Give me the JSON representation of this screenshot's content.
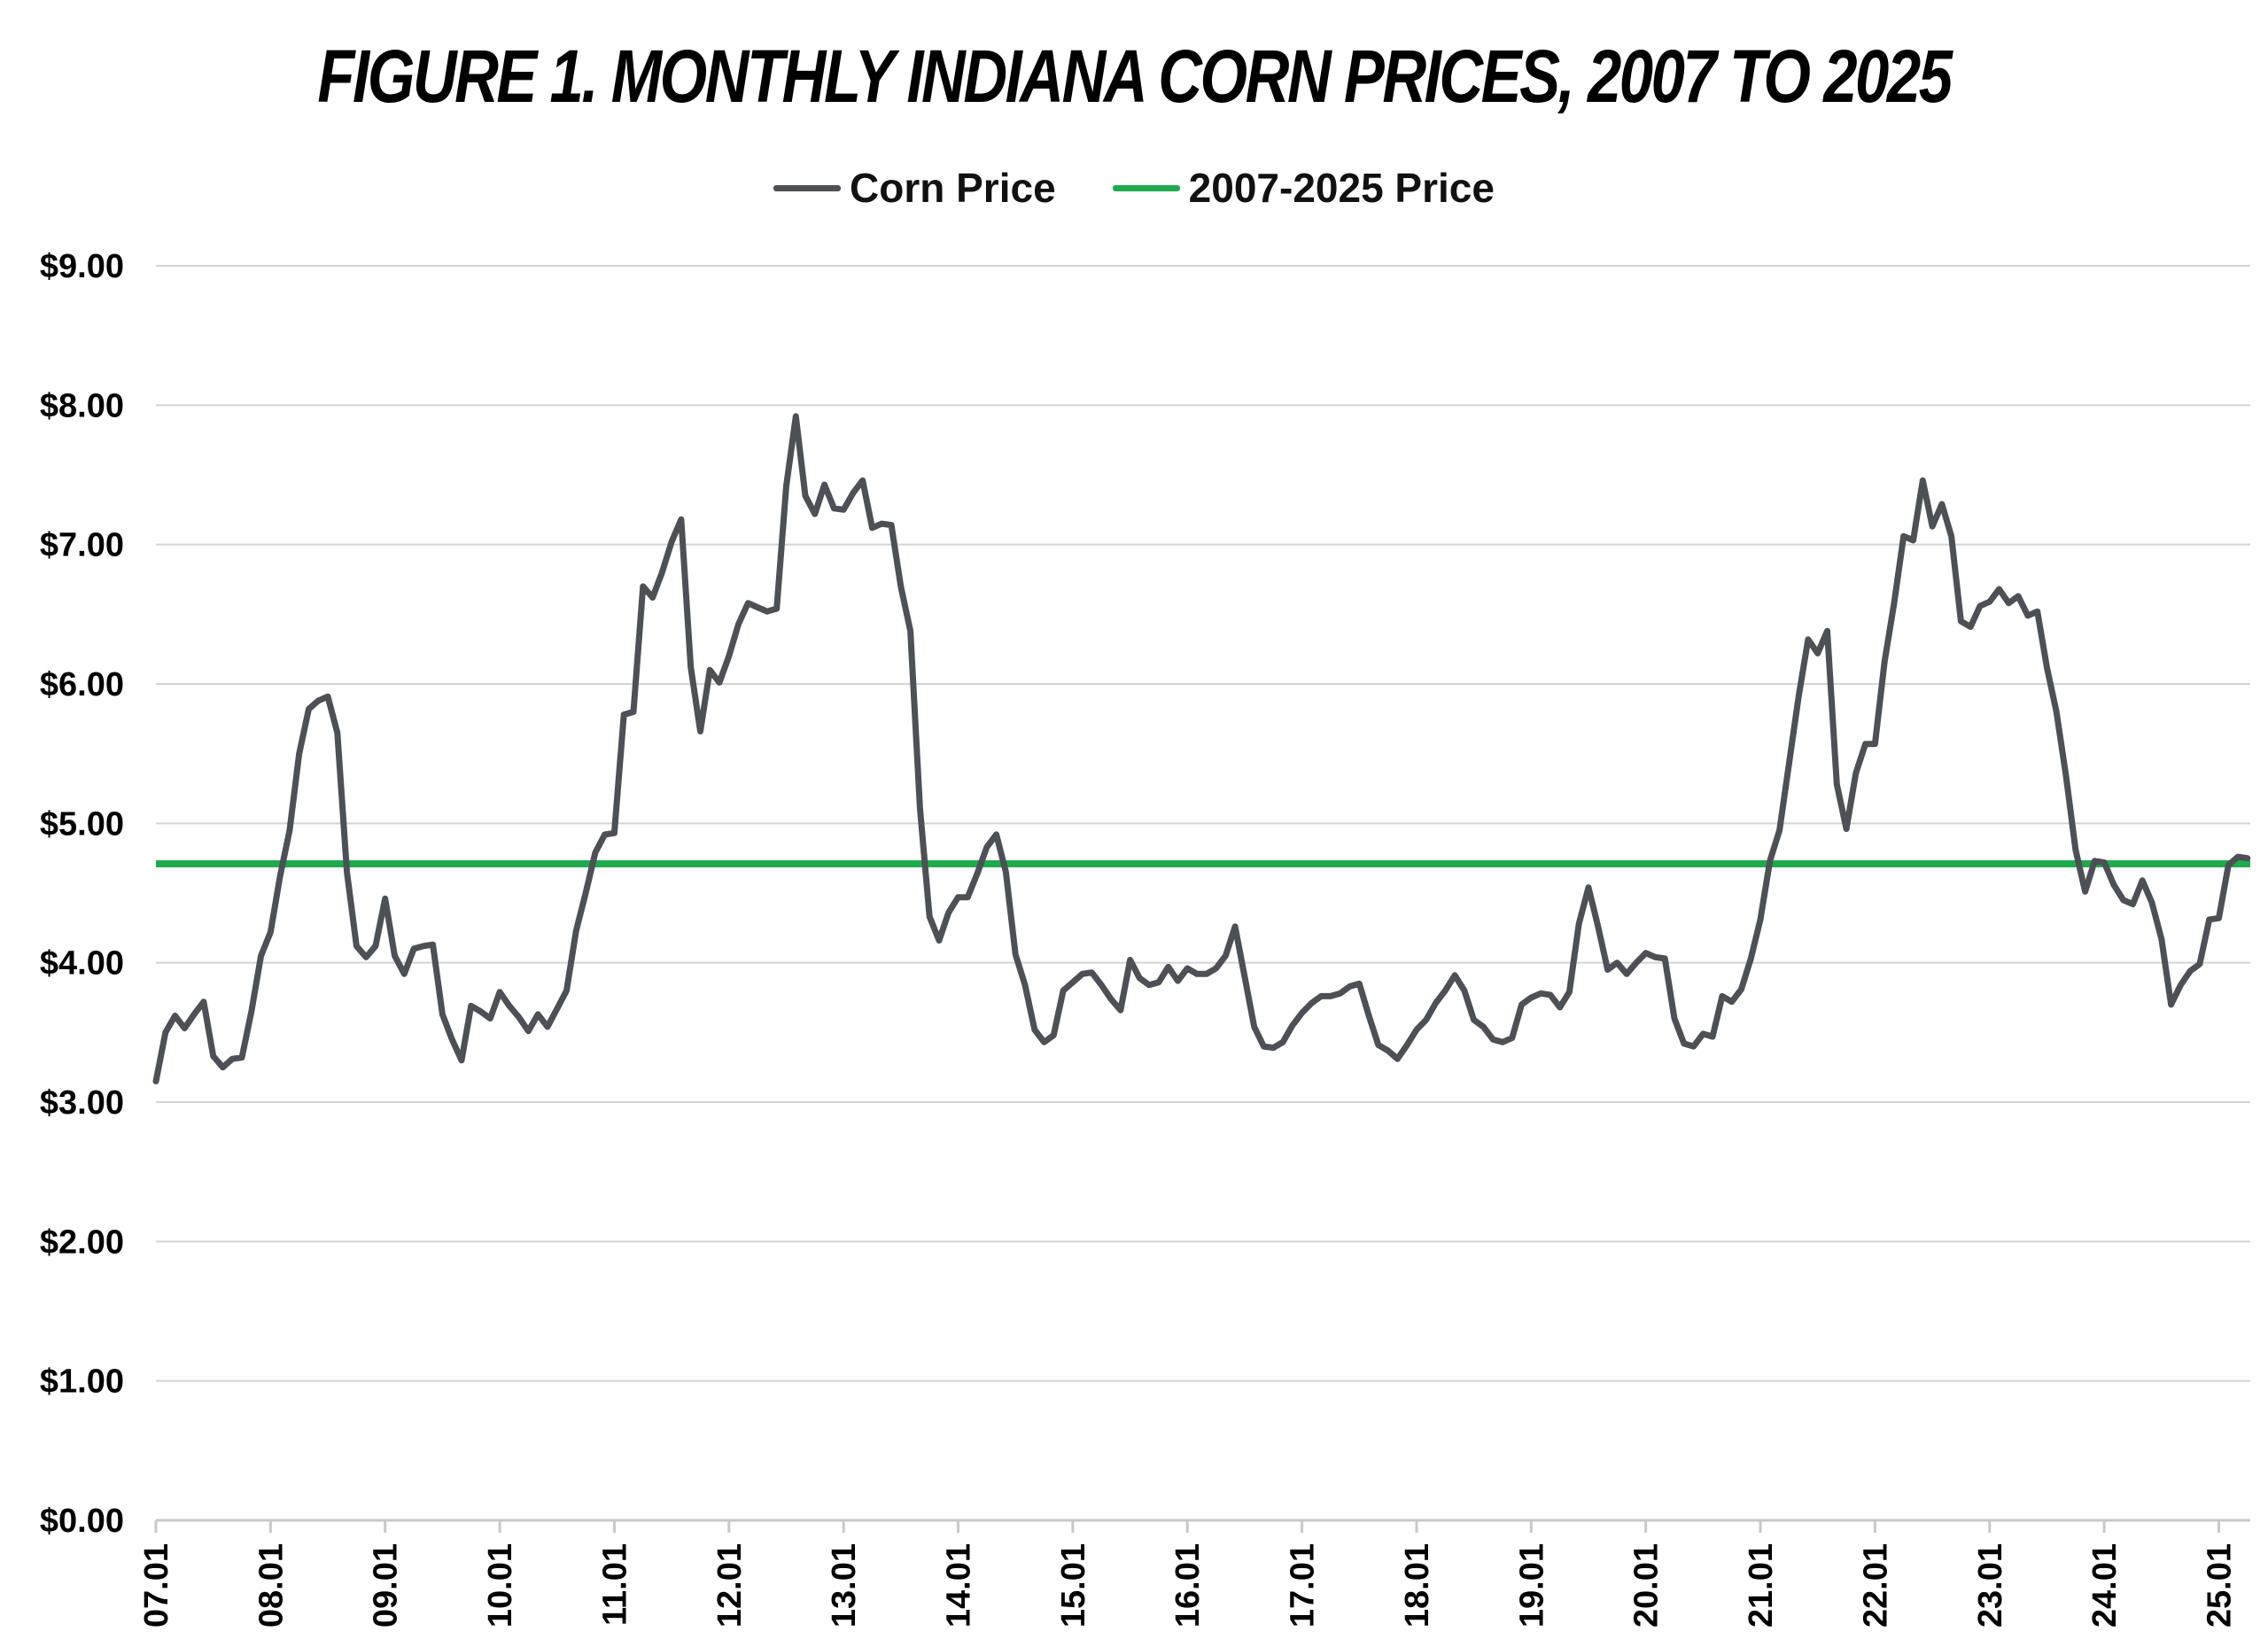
{
  "chart_data": {
    "type": "line",
    "title": "FIGURE 1.  MONTHLY INDIANA CORN PRICES, 2007 TO 2025",
    "xlabel": "",
    "ylabel": "",
    "ylim": [
      0,
      9
    ],
    "y_ticks": [
      "$0.00",
      "$1.00",
      "$2.00",
      "$3.00",
      "$4.00",
      "$5.00",
      "$6.00",
      "$7.00",
      "$8.00",
      "$9.00"
    ],
    "x_ticks": [
      "07.01",
      "08.01",
      "09.01",
      "10.01",
      "11.01",
      "12.01",
      "13.01",
      "14.01",
      "15.01",
      "16.01",
      "17.01",
      "18.01",
      "19.01",
      "20.01",
      "21.01",
      "22.01",
      "23.01",
      "24.01",
      "25.01"
    ],
    "x_start": "07.01",
    "x_step": "monthly",
    "grid": true,
    "legend_position": "top-center",
    "series": [
      {
        "name": "Corn Price",
        "color": "#4d5055",
        "values": [
          3.15,
          3.5,
          3.62,
          3.53,
          3.63,
          3.72,
          3.33,
          3.25,
          3.31,
          3.32,
          3.65,
          4.05,
          4.22,
          4.62,
          4.95,
          5.5,
          5.82,
          5.88,
          5.91,
          5.65,
          4.65,
          4.12,
          4.04,
          4.12,
          4.46,
          4.05,
          3.92,
          4.1,
          4.12,
          4.13,
          3.63,
          3.45,
          3.3,
          3.69,
          3.65,
          3.6,
          3.79,
          3.69,
          3.61,
          3.51,
          3.63,
          3.54,
          3.67,
          3.8,
          4.23,
          4.5,
          4.79,
          4.92,
          4.93,
          5.78,
          5.8,
          6.7,
          6.62,
          6.8,
          7.02,
          7.18,
          6.12,
          5.66,
          6.1,
          6.01,
          6.2,
          6.43,
          6.58,
          6.55,
          6.52,
          6.54,
          7.42,
          7.92,
          7.35,
          7.22,
          7.43,
          7.26,
          7.25,
          7.37,
          7.46,
          7.12,
          7.15,
          7.14,
          6.7,
          6.38,
          5.11,
          4.33,
          4.16,
          4.36,
          4.47,
          4.47,
          4.64,
          4.83,
          4.92,
          4.65,
          4.06,
          3.84,
          3.52,
          3.43,
          3.48,
          3.8,
          3.86,
          3.92,
          3.93,
          3.84,
          3.74,
          3.66,
          4.02,
          3.89,
          3.84,
          3.86,
          3.97,
          3.87,
          3.96,
          3.92,
          3.92,
          3.96,
          4.05,
          4.26,
          3.9,
          3.54,
          3.4,
          3.39,
          3.43,
          3.55,
          3.64,
          3.71,
          3.76,
          3.76,
          3.78,
          3.83,
          3.85,
          3.62,
          3.41,
          3.37,
          3.31,
          3.41,
          3.52,
          3.59,
          3.71,
          3.8,
          3.91,
          3.8,
          3.59,
          3.54,
          3.45,
          3.43,
          3.46,
          3.7,
          3.75,
          3.78,
          3.77,
          3.68,
          3.79,
          4.28,
          4.54,
          4.26,
          3.95,
          4.0,
          3.92,
          4.0,
          4.07,
          4.04,
          4.03,
          3.6,
          3.42,
          3.4,
          3.49,
          3.47,
          3.76,
          3.72,
          3.81,
          4.03,
          4.31,
          4.73,
          4.95,
          5.43,
          5.91,
          6.32,
          6.22,
          6.38,
          5.28,
          4.96,
          5.36,
          5.57,
          5.57,
          6.16,
          6.58,
          7.06,
          7.03,
          7.46,
          7.13,
          7.29,
          7.06,
          6.45,
          6.41,
          6.56,
          6.59,
          6.68,
          6.58,
          6.63,
          6.49,
          6.52,
          6.12,
          5.8,
          5.34,
          4.81,
          4.51,
          4.73,
          4.72,
          4.56,
          4.45,
          4.42,
          4.59,
          4.43,
          4.17,
          3.7,
          3.84,
          3.94,
          3.99,
          4.31,
          4.32,
          4.7,
          4.76,
          4.75
        ]
      },
      {
        "name": "2007-2025 Price",
        "color": "#1faa4e",
        "values": [
          4.71
        ]
      }
    ]
  }
}
